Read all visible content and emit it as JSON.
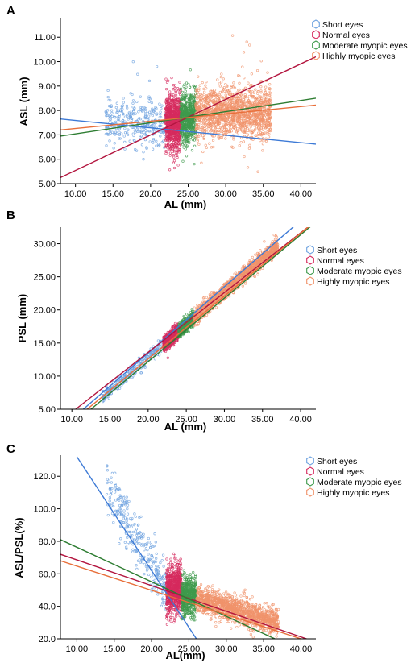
{
  "legend_entries": [
    "Short eyes",
    "Normal eyes",
    "Moderate myopic eyes",
    "Highly myopic eyes"
  ],
  "colors": {
    "short": "#6fa3e0",
    "normal": "#d62a5e",
    "moderate": "#3e9a4c",
    "high": "#f0926a",
    "line_short": "#3d7ad6",
    "line_normal": "#b3153f",
    "line_moderate": "#2e7d32",
    "line_high": "#e86f3a"
  },
  "chart_data": [
    {
      "panel": "A",
      "type": "scatter",
      "xlabel": "AL (mm)",
      "ylabel": "ASL (mm)",
      "xlim": [
        8,
        42
      ],
      "ylim": [
        5,
        11.8
      ],
      "xticks": [
        "10.00",
        "15.00",
        "20.00",
        "25.00",
        "30.00",
        "35.00",
        "40.00"
      ],
      "xtick_values": [
        10,
        15,
        20,
        25,
        30,
        35,
        40
      ],
      "yticks": [
        "5.00",
        "6.00",
        "7.00",
        "8.00",
        "9.00",
        "10.00",
        "11.00"
      ],
      "ytick_values": [
        5,
        6,
        7,
        8,
        9,
        10,
        11
      ],
      "legend": "right",
      "series": [
        {
          "name": "Short eyes",
          "x_range": [
            14,
            22
          ],
          "y_center": 7.5,
          "y_spread": 0.45,
          "count": 320
        },
        {
          "name": "Normal eyes",
          "x_range": [
            22,
            24
          ],
          "y_center": 7.5,
          "y_spread": 0.55,
          "count": 900
        },
        {
          "name": "Moderate myopic eyes",
          "x_range": [
            24,
            26
          ],
          "y_center": 7.7,
          "y_spread": 0.5,
          "count": 600
        },
        {
          "name": "Highly myopic eyes",
          "x_range": [
            26,
            36
          ],
          "y_center": 7.9,
          "y_spread": 0.5,
          "count": 1400
        }
      ],
      "fit_lines": [
        {
          "name": "Short eyes",
          "x": [
            8,
            42
          ],
          "y": [
            7.65,
            6.62
          ]
        },
        {
          "name": "Normal eyes",
          "x": [
            8,
            42
          ],
          "y": [
            5.25,
            10.2
          ]
        },
        {
          "name": "Moderate myopic eyes",
          "x": [
            8,
            42
          ],
          "y": [
            6.95,
            8.5
          ]
        },
        {
          "name": "Highly myopic eyes",
          "x": [
            8,
            42
          ],
          "y": [
            7.2,
            8.22
          ]
        }
      ]
    },
    {
      "panel": "B",
      "type": "scatter",
      "xlabel": "AL (mm)",
      "ylabel": "PSL (mm)",
      "xlim": [
        8.5,
        42
      ],
      "ylim": [
        5,
        32.5
      ],
      "xticks": [
        "10.00",
        "15.00",
        "20.00",
        "25.00",
        "30.00",
        "35.00",
        "40.00"
      ],
      "xtick_values": [
        10,
        15,
        20,
        25,
        30,
        35,
        40
      ],
      "yticks": [
        "5.00",
        "10.00",
        "15.00",
        "20.00",
        "25.00",
        "30.00"
      ],
      "ytick_values": [
        5,
        10,
        15,
        20,
        25,
        30
      ],
      "legend": "right",
      "series": [
        {
          "name": "Short eyes",
          "x_range": [
            14,
            22
          ],
          "slope": 1.0,
          "intercept": -7.2,
          "spread": 0.5,
          "count": 260
        },
        {
          "name": "Normal eyes",
          "x_range": [
            22,
            24
          ],
          "slope": 1.0,
          "intercept": -7.2,
          "spread": 0.55,
          "count": 700
        },
        {
          "name": "Moderate myopic eyes",
          "x_range": [
            24,
            26
          ],
          "slope": 1.0,
          "intercept": -7.2,
          "spread": 0.55,
          "count": 450
        },
        {
          "name": "Highly myopic eyes",
          "x_range": [
            26,
            37
          ],
          "slope": 1.0,
          "intercept": -7.2,
          "spread": 0.6,
          "count": 1100
        }
      ],
      "fit_lines": [
        {
          "name": "Short eyes",
          "x": [
            11.5,
            39.5
          ],
          "y": [
            5,
            33
          ]
        },
        {
          "name": "Normal eyes",
          "x": [
            10.5,
            41.5
          ],
          "y": [
            5,
            33
          ]
        },
        {
          "name": "Moderate myopic eyes",
          "x": [
            12.5,
            41.5
          ],
          "y": [
            5,
            32.8
          ]
        },
        {
          "name": "Highly myopic eyes",
          "x": [
            12,
            41.5
          ],
          "y": [
            5,
            33
          ]
        }
      ]
    },
    {
      "panel": "C",
      "type": "scatter",
      "xlabel": "AL(mm)",
      "ylabel": "ASL/PSL(%)",
      "xlim": [
        7.8,
        42
      ],
      "ylim": [
        20,
        133
      ],
      "xticks": [
        "10.00",
        "15.00",
        "20.00",
        "25.00",
        "30.00",
        "35.00",
        "40.00"
      ],
      "xtick_values": [
        10,
        15,
        20,
        25,
        30,
        35,
        40
      ],
      "yticks": [
        "20.0",
        "40.0",
        "60.0",
        "80.0",
        "100.0",
        "120.0"
      ],
      "ytick_values": [
        20,
        40,
        60,
        80,
        100,
        120
      ],
      "legend": "right",
      "series": [
        {
          "name": "Short eyes",
          "x_range": [
            14,
            22
          ],
          "curve": "short",
          "count": 300
        },
        {
          "name": "Normal eyes",
          "x_range": [
            22,
            24
          ],
          "y_center": 50,
          "y_spread": 7,
          "count": 800
        },
        {
          "name": "Moderate myopic eyes",
          "x_range": [
            24,
            26
          ],
          "y_center": 46,
          "y_spread": 6,
          "count": 550
        },
        {
          "name": "Highly myopic eyes",
          "x_range": [
            26,
            37
          ],
          "linear": [
            80.7,
            -1.38
          ],
          "y_spread": 4,
          "count": 1300
        }
      ],
      "fit_lines": [
        {
          "name": "Short eyes",
          "x": [
            10,
            26
          ],
          "y": [
            132,
            20
          ]
        },
        {
          "name": "Normal eyes",
          "x": [
            7.8,
            42
          ],
          "y": [
            72,
            18
          ]
        },
        {
          "name": "Moderate myopic eyes",
          "x": [
            7.8,
            36.5
          ],
          "y": [
            81,
            20
          ]
        },
        {
          "name": "Highly myopic eyes",
          "x": [
            7.8,
            40
          ],
          "y": [
            68,
            20
          ]
        }
      ]
    }
  ]
}
